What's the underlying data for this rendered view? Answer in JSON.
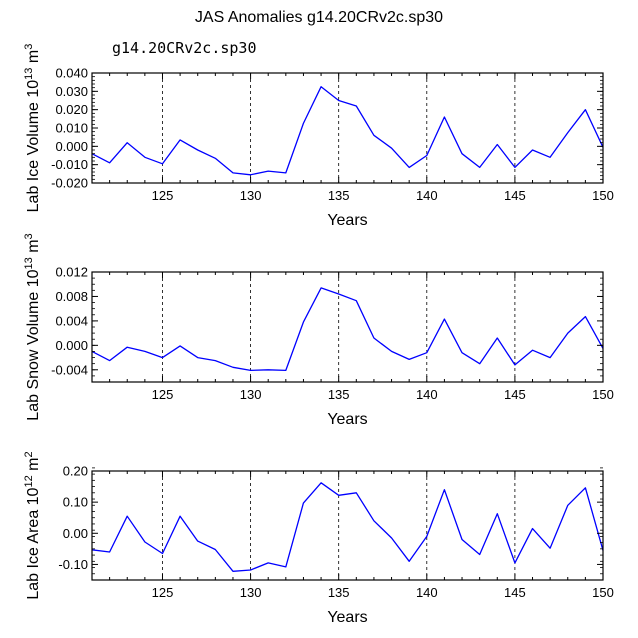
{
  "title": "JAS Anomalies g14.20CRv2c.sp30",
  "legend_label": "g14.20CRv2c.sp30",
  "series_color": "#0000ff",
  "grid_color": "#000000",
  "chart_data": [
    {
      "type": "line",
      "ylabel_parts": {
        "text": "Lab Ice Volume 10",
        "exp": "13",
        "unit": " m",
        "unit_exp": "3"
      },
      "xlabel": "Years",
      "x": [
        121,
        122,
        123,
        124,
        125,
        126,
        127,
        128,
        129,
        130,
        131,
        132,
        133,
        134,
        135,
        136,
        137,
        138,
        139,
        140,
        141,
        142,
        143,
        144,
        145,
        146,
        147,
        148,
        149,
        150
      ],
      "values": [
        -0.004,
        -0.009,
        0.002,
        -0.006,
        -0.0095,
        0.0035,
        -0.002,
        -0.0065,
        -0.0145,
        -0.0155,
        -0.0135,
        -0.0145,
        0.0125,
        0.0325,
        0.025,
        0.022,
        0.006,
        -0.001,
        -0.0115,
        -0.005,
        0.016,
        -0.004,
        -0.0115,
        0.001,
        -0.0115,
        -0.002,
        -0.006,
        0.0075,
        0.02,
        -0.0005
      ],
      "xlim": [
        121,
        150
      ],
      "ylim": [
        -0.02,
        0.04
      ],
      "xticks": [
        125,
        130,
        135,
        140,
        145,
        150
      ],
      "xtick_labels": [
        "125",
        "130",
        "135",
        "140",
        "145",
        "150"
      ],
      "yticks": [
        -0.02,
        -0.01,
        0.0,
        0.01,
        0.02,
        0.03,
        0.04
      ],
      "ytick_labels": [
        "-0.020",
        "-0.010",
        "0.000",
        "0.010",
        "0.020",
        "0.030",
        "0.040"
      ],
      "yminor_step": 0.002,
      "grid_x": [
        125,
        130,
        135,
        140,
        145
      ],
      "series_name": "g14.20CRv2c.sp30"
    },
    {
      "type": "line",
      "ylabel_parts": {
        "text": "Lab Snow Volume 10",
        "exp": "13",
        "unit": " m",
        "unit_exp": "3"
      },
      "xlabel": "Years",
      "x": [
        121,
        122,
        123,
        124,
        125,
        126,
        127,
        128,
        129,
        130,
        131,
        132,
        133,
        134,
        135,
        136,
        137,
        138,
        139,
        140,
        141,
        142,
        143,
        144,
        145,
        146,
        147,
        148,
        149,
        150
      ],
      "values": [
        -0.001,
        -0.0025,
        -0.0003,
        -0.001,
        -0.002,
        -0.0001,
        -0.002,
        -0.0025,
        -0.0036,
        -0.0041,
        -0.004,
        -0.0041,
        0.0038,
        0.0094,
        0.0084,
        0.0073,
        0.0012,
        -0.001,
        -0.0023,
        -0.0012,
        0.0043,
        -0.0012,
        -0.003,
        0.0012,
        -0.0032,
        -0.0008,
        -0.002,
        0.002,
        0.0047,
        -0.0005
      ],
      "xlim": [
        121,
        150
      ],
      "ylim": [
        -0.006,
        0.012
      ],
      "xticks": [
        125,
        130,
        135,
        140,
        145,
        150
      ],
      "xtick_labels": [
        "125",
        "130",
        "135",
        "140",
        "145",
        "150"
      ],
      "yticks": [
        -0.004,
        0.0,
        0.004,
        0.008,
        0.012
      ],
      "ytick_labels": [
        "-0.004",
        "0.000",
        "0.004",
        "0.008",
        "0.012"
      ],
      "yminor_step": 0.001,
      "grid_x": [
        125,
        130,
        135,
        140,
        145
      ],
      "series_name": "g14.20CRv2c.sp30"
    },
    {
      "type": "line",
      "ylabel_parts": {
        "text": "Lab Ice Area 10",
        "exp": "12",
        "unit": " m",
        "unit_exp": "2"
      },
      "xlabel": "Years",
      "x": [
        121,
        122,
        123,
        124,
        125,
        126,
        127,
        128,
        129,
        130,
        131,
        132,
        133,
        134,
        135,
        136,
        137,
        138,
        139,
        140,
        141,
        142,
        143,
        144,
        145,
        146,
        147,
        148,
        149,
        150
      ],
      "values": [
        -0.053,
        -0.06,
        0.055,
        -0.028,
        -0.065,
        0.055,
        -0.025,
        -0.052,
        -0.122,
        -0.118,
        -0.095,
        -0.108,
        0.097,
        0.162,
        0.122,
        0.13,
        0.04,
        -0.015,
        -0.09,
        -0.01,
        0.14,
        -0.02,
        -0.068,
        0.063,
        -0.095,
        0.015,
        -0.048,
        0.09,
        0.146,
        -0.055
      ],
      "xlim": [
        121,
        150
      ],
      "ylim": [
        -0.15,
        0.2
      ],
      "xticks": [
        125,
        130,
        135,
        140,
        145,
        150
      ],
      "xtick_labels": [
        "125",
        "130",
        "135",
        "140",
        "145",
        "150"
      ],
      "yticks": [
        -0.1,
        0.0,
        0.1,
        0.2
      ],
      "ytick_labels": [
        "-0.10",
        "0.00",
        "0.10",
        "0.20"
      ],
      "yminor_step": 0.02,
      "grid_x": [
        125,
        130,
        135,
        140,
        145
      ],
      "series_name": "g14.20CRv2c.sp30"
    }
  ]
}
